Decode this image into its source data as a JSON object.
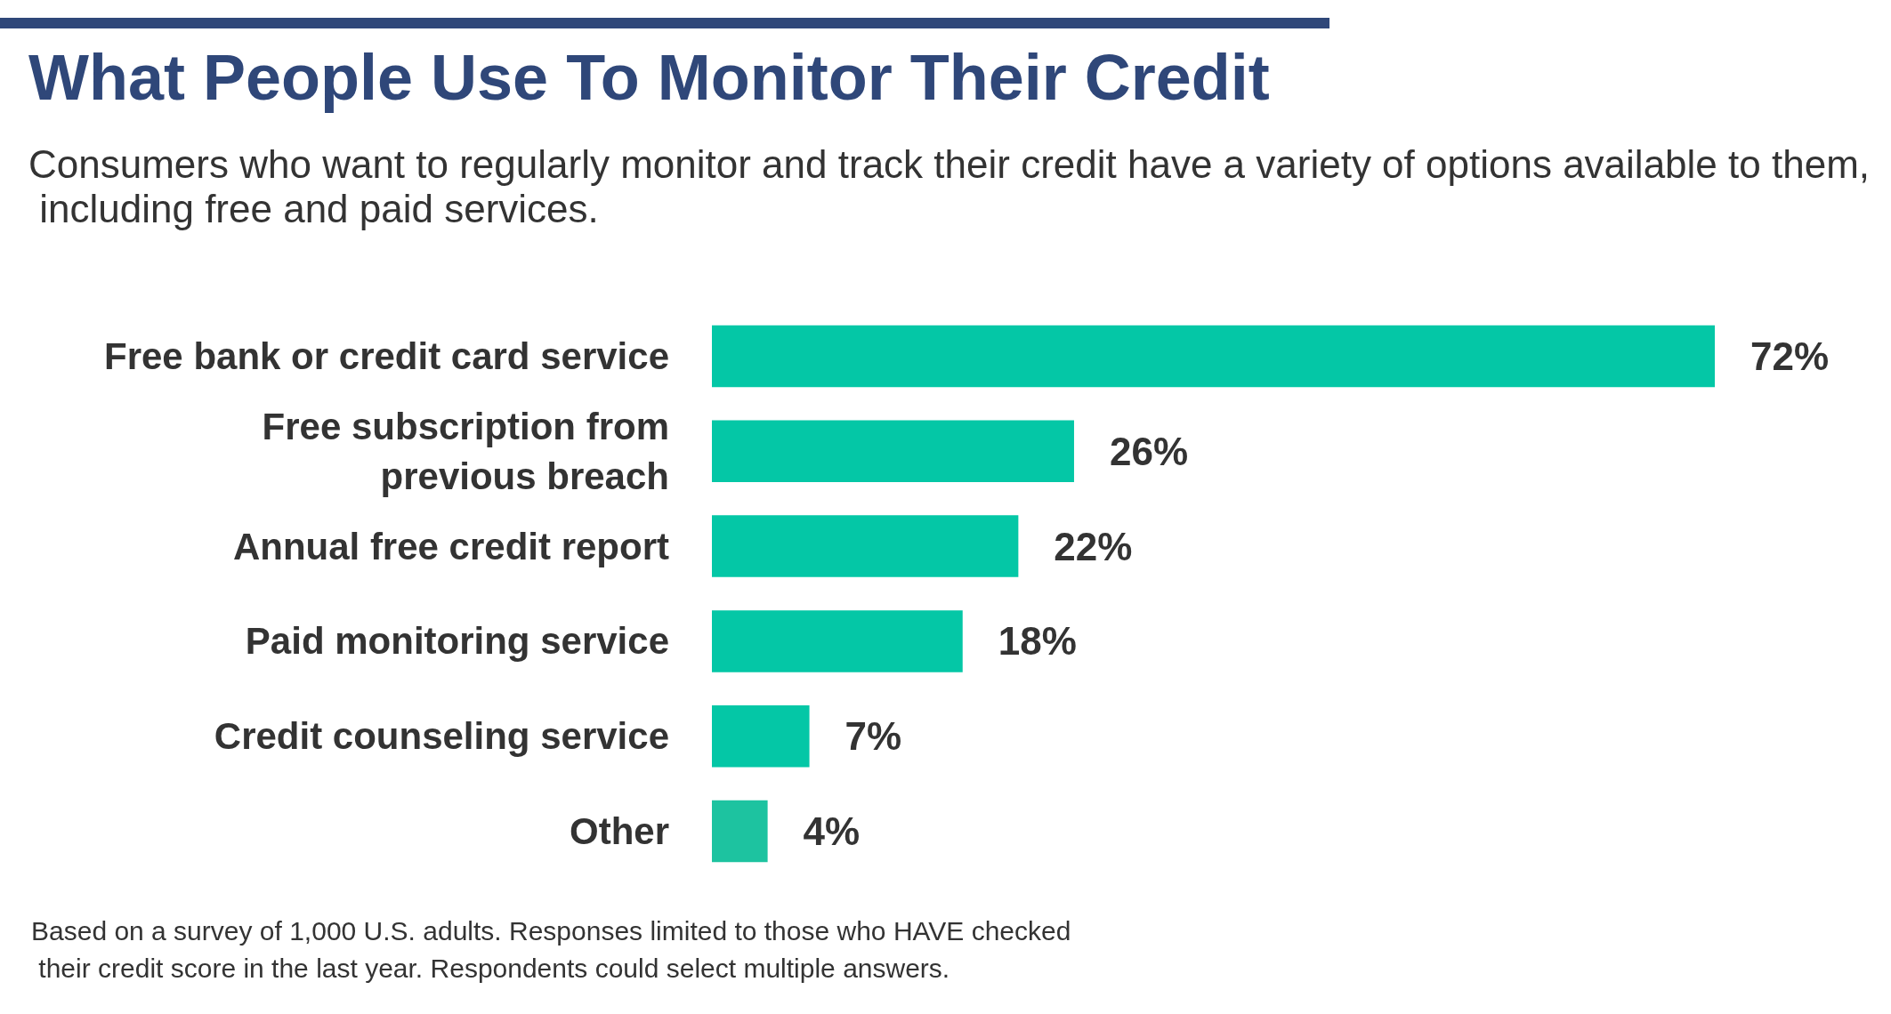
{
  "chart_data": {
    "type": "bar",
    "orientation": "horizontal",
    "title": "What People Use To Monitor Their Credit",
    "subtitle": "Consumers who want to regularly monitor and track their credit have a variety of options available to them, including free and paid services.",
    "categories": [
      "Free bank or credit card service",
      "Free subscription from\nprevious breach",
      "Annual free credit report",
      "Paid monitoring service",
      "Credit counseling service",
      "Other"
    ],
    "values": [
      72,
      26,
      22,
      18,
      7,
      4
    ],
    "value_labels": [
      "72%",
      "26%",
      "22%",
      "18%",
      "7%",
      "4%"
    ],
    "colors": [
      "#04c7a6",
      "#04c7a6",
      "#04c7a6",
      "#04c7a6",
      "#04c7a6",
      "#1dc3a0"
    ],
    "tick_labels": "y",
    "annotations": [
      "Based on a survey of 1,000 U.S. adults. Responses limited to those who HAVE checked their credit score in the last year. Respondents could select multiple answers."
    ]
  }
}
